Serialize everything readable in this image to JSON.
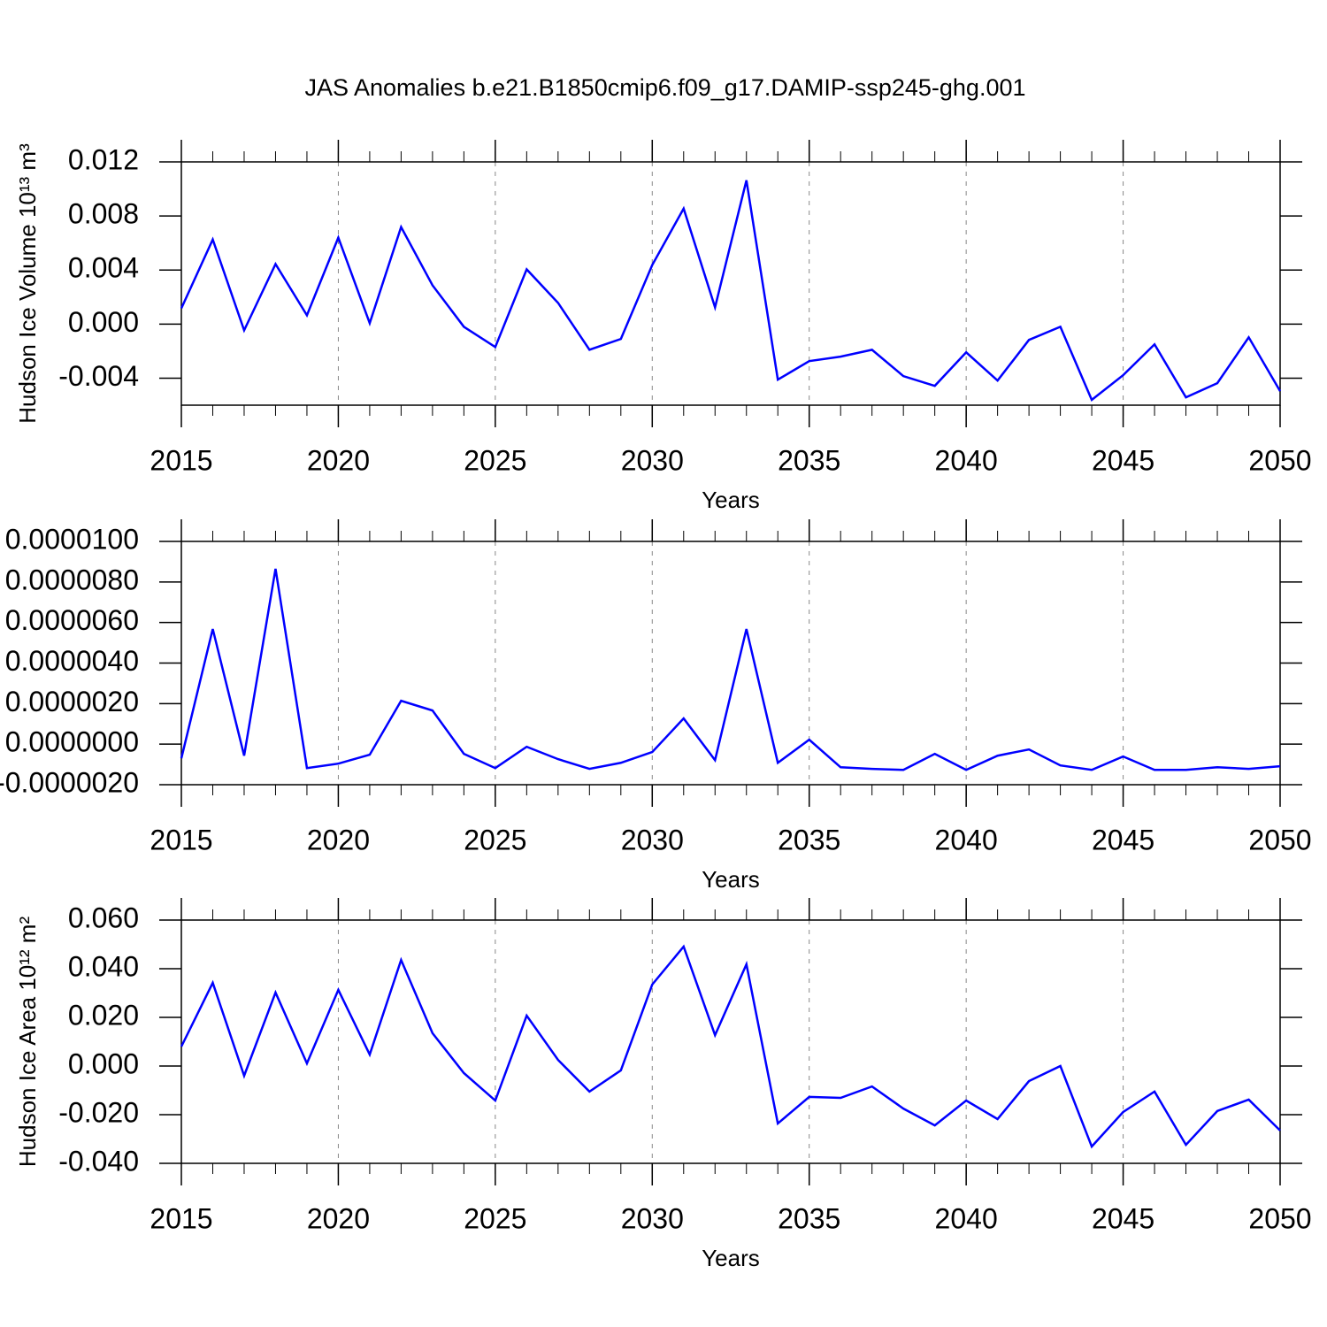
{
  "title": "JAS Anomalies b.e21.B1850cmip6.f09_g17.DAMIP-ssp245-ghg.001",
  "chart_data": [
    {
      "type": "line",
      "ylabel": "Hudson Ice Volume 10¹³ m³",
      "xlabel": "Years",
      "x": [
        2015,
        2016,
        2017,
        2018,
        2019,
        2020,
        2021,
        2022,
        2023,
        2024,
        2025,
        2026,
        2027,
        2028,
        2029,
        2030,
        2031,
        2032,
        2033,
        2034,
        2035,
        2036,
        2037,
        2038,
        2039,
        2040,
        2041,
        2042,
        2043,
        2044,
        2045,
        2046,
        2047,
        2048,
        2049,
        2050
      ],
      "series": [
        {
          "color": "#0000ff",
          "values": [
            0.00117,
            0.00626,
            -0.00046,
            0.00444,
            0.00065,
            0.0064,
            7e-05,
            0.00718,
            0.00287,
            -0.0002,
            -0.0017,
            0.00405,
            0.00157,
            -0.0019,
            -0.0011,
            0.00437,
            0.00855,
            0.00124,
            0.01064,
            -0.00411,
            -0.00274,
            -0.00241,
            -0.0019,
            -0.00385,
            -0.00457,
            -0.00209,
            -0.00418,
            -0.00117,
            -0.0002,
            -0.00561,
            -0.00378,
            -0.0015,
            -0.00542,
            -0.00437,
            -0.00098,
            -0.00496
          ]
        }
      ],
      "xlim": [
        2015,
        2050
      ],
      "xticks": [
        2015,
        2020,
        2025,
        2030,
        2035,
        2040,
        2045,
        2050
      ],
      "ylim": [
        -0.006,
        0.012
      ],
      "yticks": [
        -0.004,
        {
          "value": 0,
          "label": "0.000"
        },
        0.004,
        0.008,
        0.012
      ],
      "grid": "x"
    },
    {
      "type": "line",
      "xlabel": "Years",
      "x": [
        2015,
        2016,
        2017,
        2018,
        2019,
        2020,
        2021,
        2022,
        2023,
        2024,
        2025,
        2026,
        2027,
        2028,
        2029,
        2030,
        2031,
        2032,
        2033,
        2034,
        2035,
        2036,
        2037,
        2038,
        2039,
        2040,
        2041,
        2042,
        2043,
        2044,
        2045,
        2046,
        2047,
        2048,
        2049,
        2050
      ],
      "series": [
        {
          "color": "#0000ff",
          "values": [
            -7e-07,
            5.68e-06,
            -5.7e-07,
            8.65e-06,
            -1.18e-06,
            -9.6e-07,
            -5.2e-07,
            2.14e-06,
            1.66e-06,
            -4.8e-07,
            -1.18e-06,
            -1.3e-07,
            -7.4e-07,
            -1.22e-06,
            -9.2e-07,
            -3.9e-07,
            1.27e-06,
            -7.9e-07,
            5.68e-06,
            -9.2e-07,
            2.2e-07,
            -1.14e-06,
            -1.22e-06,
            -1.27e-06,
            -4.8e-07,
            -1.27e-06,
            -5.7e-07,
            -2.6e-07,
            -1.05e-06,
            -1.27e-06,
            -6.1e-07,
            -1.27e-06,
            -1.27e-06,
            -1.14e-06,
            -1.22e-06,
            -1.09e-06
          ]
        }
      ],
      "xlim": [
        2015,
        2050
      ],
      "xticks": [
        2015,
        2020,
        2025,
        2030,
        2035,
        2040,
        2045,
        2050
      ],
      "ylim": [
        -2e-06,
        1e-05
      ],
      "yticks": [
        {
          "value": -2e-06,
          "label": "-0.0000020"
        },
        {
          "value": 0,
          "label": "0.0000000"
        },
        {
          "value": 2e-06,
          "label": "0.0000020"
        },
        {
          "value": 4e-06,
          "label": "0.0000040"
        },
        {
          "value": 6e-06,
          "label": "0.0000060"
        },
        {
          "value": 8e-06,
          "label": "0.0000080"
        },
        {
          "value": 1e-05,
          "label": "0.0000100"
        }
      ],
      "grid": "x"
    },
    {
      "type": "line",
      "ylabel": "Hudson Ice Area 10¹² m²",
      "xlabel": "Years",
      "x": [
        2015,
        2016,
        2017,
        2018,
        2019,
        2020,
        2021,
        2022,
        2023,
        2024,
        2025,
        2026,
        2027,
        2028,
        2029,
        2030,
        2031,
        2032,
        2033,
        2034,
        2035,
        2036,
        2037,
        2038,
        2039,
        2040,
        2041,
        2042,
        2043,
        2044,
        2045,
        2046,
        2047,
        2048,
        2049,
        2050
      ],
      "series": [
        {
          "color": "#0000ff",
          "values": [
            0.008,
            0.0342,
            -0.004,
            0.0302,
            0.0011,
            0.0313,
            0.0047,
            0.0436,
            0.0135,
            -0.0029,
            -0.0142,
            0.0207,
            0.0025,
            -0.0105,
            -0.0018,
            0.0335,
            0.0491,
            0.0127,
            0.0418,
            -0.0236,
            -0.0127,
            -0.0131,
            -0.0084,
            -0.0175,
            -0.0244,
            -0.0142,
            -0.0218,
            -0.0062,
            0.0,
            -0.0331,
            -0.0189,
            -0.0105,
            -0.0324,
            -0.0185,
            -0.0138,
            -0.0265
          ]
        }
      ],
      "xlim": [
        2015,
        2050
      ],
      "xticks": [
        2015,
        2020,
        2025,
        2030,
        2035,
        2040,
        2045,
        2050
      ],
      "ylim": [
        -0.04,
        0.06
      ],
      "yticks": [
        {
          "value": -0.04,
          "label": "-0.040"
        },
        {
          "value": -0.02,
          "label": "-0.020"
        },
        {
          "value": 0,
          "label": "0.000"
        },
        {
          "value": 0.02,
          "label": "0.020"
        },
        {
          "value": 0.04,
          "label": "0.040"
        },
        {
          "value": 0.06,
          "label": "0.060"
        }
      ],
      "grid": "x"
    }
  ]
}
